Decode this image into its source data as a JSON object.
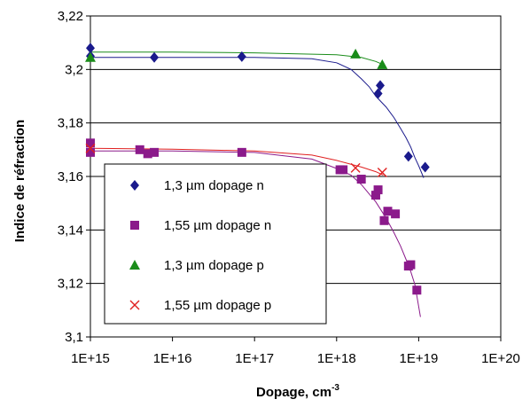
{
  "chart_data": {
    "type": "scatter",
    "title": "",
    "xlabel": "Dopage, cm",
    "xlabel_sup": "-3",
    "ylabel": "Indice de réfraction",
    "xscale": "log",
    "xlim": [
      1000000000000000.0,
      1e+20
    ],
    "ylim": [
      3.1,
      3.22
    ],
    "x_ticks": [
      "1E+15",
      "1E+16",
      "1E+17",
      "1E+18",
      "1E+19",
      "1E+20"
    ],
    "y_ticks": [
      "3,1",
      "3,12",
      "3,14",
      "3,16",
      "3,18",
      "3,2",
      "3,22"
    ],
    "legend_position": "left, inside plot area",
    "series": [
      {
        "name": "1,3 µm dopage n",
        "marker": "diamond",
        "color": "#1a1a8c",
        "points": [
          [
            1000000000000000.0,
            3.208
          ],
          [
            1000000000000000.0,
            3.205
          ],
          [
            6000000000000000.0,
            3.2045
          ],
          [
            7e+16,
            3.2048
          ],
          [
            3.2e+18,
            3.191
          ],
          [
            3.4e+18,
            3.194
          ],
          [
            7.5e+18,
            3.1675
          ],
          [
            1.2e+19,
            3.1635
          ]
        ],
        "fit": [
          [
            1000000000000000.0,
            3.2045
          ],
          [
            1e+16,
            3.2045
          ],
          [
            1e+17,
            3.2045
          ],
          [
            5e+17,
            3.204
          ],
          [
            1e+18,
            3.2025
          ],
          [
            1.5e+18,
            3.2
          ],
          [
            2e+18,
            3.1965
          ],
          [
            2.5e+18,
            3.1935
          ],
          [
            3e+18,
            3.19
          ],
          [
            4e+18,
            3.186
          ],
          [
            5e+18,
            3.182
          ],
          [
            6e+18,
            3.178
          ],
          [
            7e+18,
            3.1745
          ],
          [
            8e+18,
            3.171
          ],
          [
            9e+18,
            3.167
          ],
          [
            1e+19,
            3.164
          ],
          [
            1.15e+19,
            3.1595
          ]
        ]
      },
      {
        "name": "1,55 µm dopage n",
        "marker": "square",
        "color": "#8b1a8b",
        "points": [
          [
            1000000000000000.0,
            3.1725
          ],
          [
            1000000000000000.0,
            3.169
          ],
          [
            4000000000000000.0,
            3.17
          ],
          [
            5000000000000000.0,
            3.1685
          ],
          [
            6000000000000000.0,
            3.169
          ],
          [
            7e+16,
            3.169
          ],
          [
            1.1e+18,
            3.1625
          ],
          [
            1.2e+18,
            3.1625
          ],
          [
            2e+18,
            3.159
          ],
          [
            3e+18,
            3.153
          ],
          [
            3.2e+18,
            3.155
          ],
          [
            3.8e+18,
            3.1435
          ],
          [
            4.2e+18,
            3.147
          ],
          [
            5.2e+18,
            3.146
          ],
          [
            7.5e+18,
            3.1265
          ],
          [
            8e+18,
            3.127
          ],
          [
            9.5e+18,
            3.1175
          ]
        ],
        "fit": [
          [
            1000000000000000.0,
            3.1695
          ],
          [
            1e+16,
            3.1695
          ],
          [
            1e+17,
            3.169
          ],
          [
            5e+17,
            3.1665
          ],
          [
            1e+18,
            3.163
          ],
          [
            1.5e+18,
            3.1605
          ],
          [
            2e+18,
            3.157
          ],
          [
            3e+18,
            3.1505
          ],
          [
            4e+18,
            3.1445
          ],
          [
            5e+18,
            3.139
          ],
          [
            6e+18,
            3.134
          ],
          [
            7e+18,
            3.129
          ],
          [
            8e+18,
            3.1245
          ],
          [
            9e+18,
            3.1195
          ],
          [
            1.05e+19,
            3.1075
          ]
        ]
      },
      {
        "name": "1,3 µm dopage p",
        "marker": "triangle",
        "color": "#1a8c1a",
        "points": [
          [
            1000000000000000.0,
            3.2045
          ],
          [
            1.7e+18,
            3.2058
          ],
          [
            3.6e+18,
            3.2018
          ]
        ],
        "fit": [
          [
            1000000000000000.0,
            3.2065
          ],
          [
            1e+16,
            3.2065
          ],
          [
            1e+17,
            3.2062
          ],
          [
            1e+18,
            3.2055
          ],
          [
            2e+18,
            3.2045
          ],
          [
            3e+18,
            3.203
          ],
          [
            3.7e+18,
            3.2018
          ]
        ]
      },
      {
        "name": "1,55 µm dopage p",
        "marker": "x",
        "color": "#e02020",
        "points": [
          [
            1000000000000000.0,
            3.1705
          ],
          [
            1.7e+18,
            3.1632
          ],
          [
            3.6e+18,
            3.1615
          ]
        ],
        "fit": [
          [
            1000000000000000.0,
            3.1705
          ],
          [
            1e+16,
            3.1702
          ],
          [
            1e+17,
            3.1695
          ],
          [
            5e+17,
            3.168
          ],
          [
            1e+18,
            3.166
          ],
          [
            2e+18,
            3.1635
          ],
          [
            3e+18,
            3.1618
          ],
          [
            3.7e+18,
            3.1605
          ]
        ]
      }
    ]
  }
}
